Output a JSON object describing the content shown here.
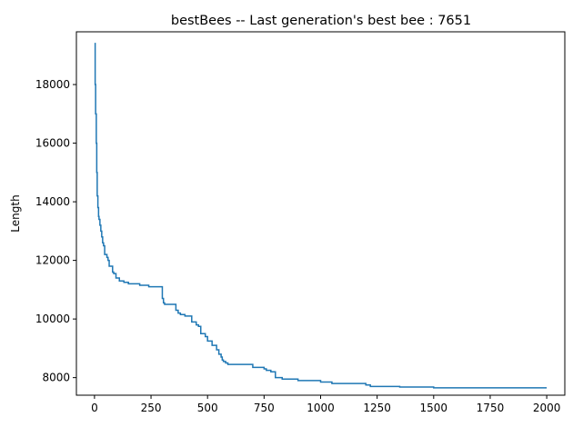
{
  "chart_data": {
    "type": "line",
    "title": "bestBees -- Last generation's best bee : 7651",
    "xlabel": "",
    "ylabel": "Length",
    "xlim": [
      -80,
      2080
    ],
    "ylim": [
      7400,
      19800
    ],
    "xticks": [
      0,
      250,
      500,
      750,
      1000,
      1250,
      1500,
      1750,
      2000
    ],
    "yticks": [
      8000,
      10000,
      12000,
      14000,
      16000,
      18000
    ],
    "xtick_labels": [
      "0",
      "250",
      "500",
      "750",
      "1000",
      "1250",
      "1500",
      "1750",
      "2000"
    ],
    "ytick_labels": [
      "8000",
      "10000",
      "12000",
      "14000",
      "16000",
      "18000"
    ],
    "grid": false,
    "color": "#1f77b4",
    "series": [
      {
        "step": true,
        "x": [
          0,
          3,
          5,
          8,
          10,
          12,
          15,
          18,
          20,
          24,
          28,
          32,
          36,
          40,
          45,
          50,
          55,
          60,
          65,
          80,
          85,
          95,
          110,
          130,
          150,
          200,
          240,
          295,
          300,
          305,
          310,
          360,
          370,
          380,
          400,
          430,
          450,
          460,
          470,
          490,
          500,
          520,
          540,
          550,
          560,
          565,
          570,
          580,
          590,
          700,
          750,
          760,
          780,
          800,
          830,
          900,
          1000,
          1050,
          1200,
          1220,
          1350,
          1500,
          2000
        ],
        "y": [
          19400,
          18000,
          17000,
          16000,
          15000,
          14200,
          13800,
          13500,
          13400,
          13200,
          13000,
          12800,
          12600,
          12500,
          12200,
          12200,
          12100,
          12000,
          11800,
          11600,
          11550,
          11400,
          11300,
          11250,
          11200,
          11150,
          11100,
          11100,
          10700,
          10550,
          10500,
          10300,
          10200,
          10150,
          10100,
          9900,
          9800,
          9750,
          9500,
          9400,
          9250,
          9100,
          8950,
          8800,
          8700,
          8600,
          8550,
          8500,
          8450,
          8350,
          8300,
          8250,
          8200,
          8000,
          7950,
          7900,
          7850,
          7800,
          7750,
          7700,
          7680,
          7651,
          7651
        ]
      }
    ]
  }
}
